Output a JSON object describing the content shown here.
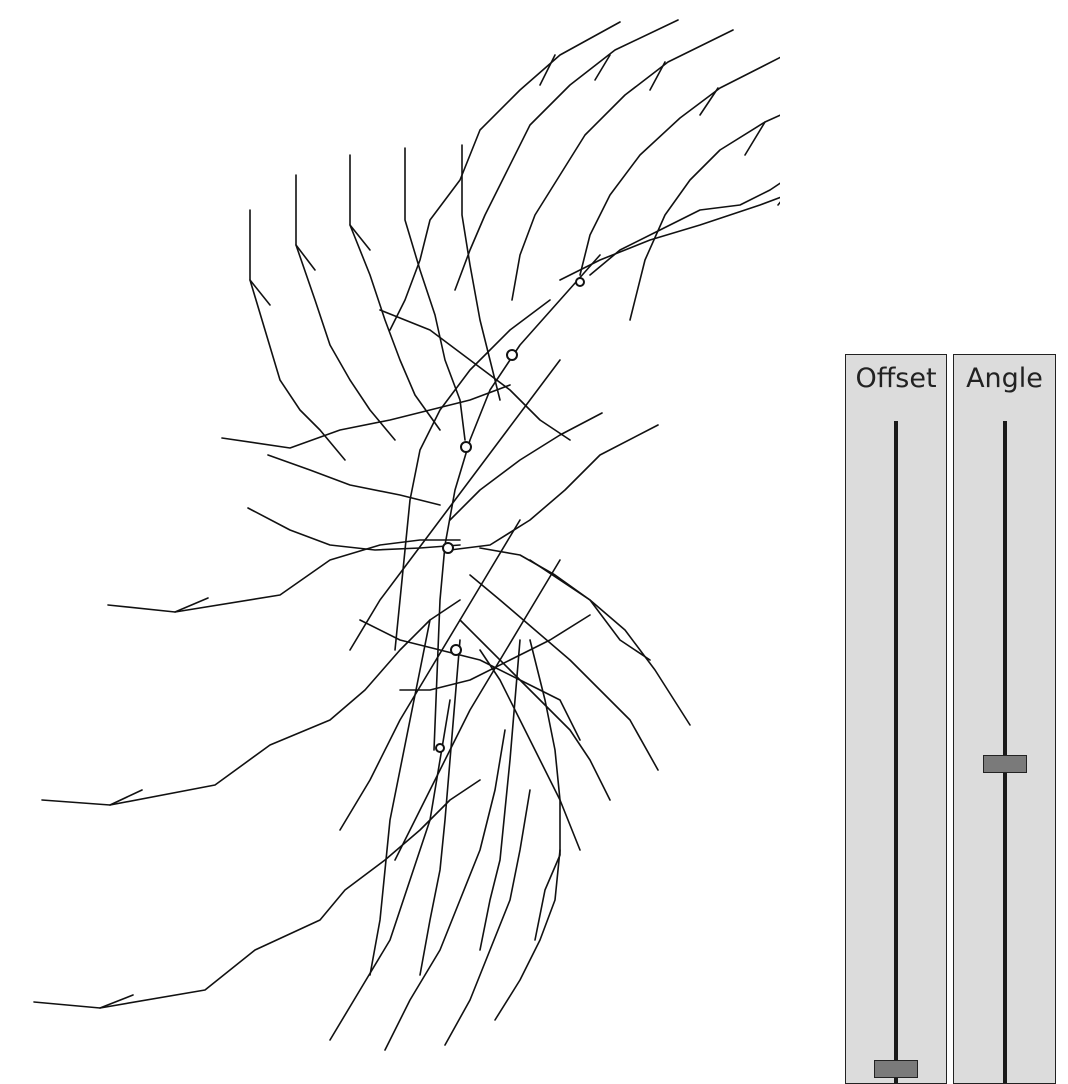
{
  "sliders": [
    {
      "id": "offset",
      "label": "Offset",
      "value": 0.0
    },
    {
      "id": "angle",
      "label": "Angle",
      "value": 0.47
    }
  ],
  "colors": {
    "stroke": "#111111",
    "panel": "#dcdcdc",
    "thumb": "#7a7a7a",
    "background": "#ffffff"
  },
  "drawing": {
    "branches": 22,
    "description_hidden": true
  }
}
